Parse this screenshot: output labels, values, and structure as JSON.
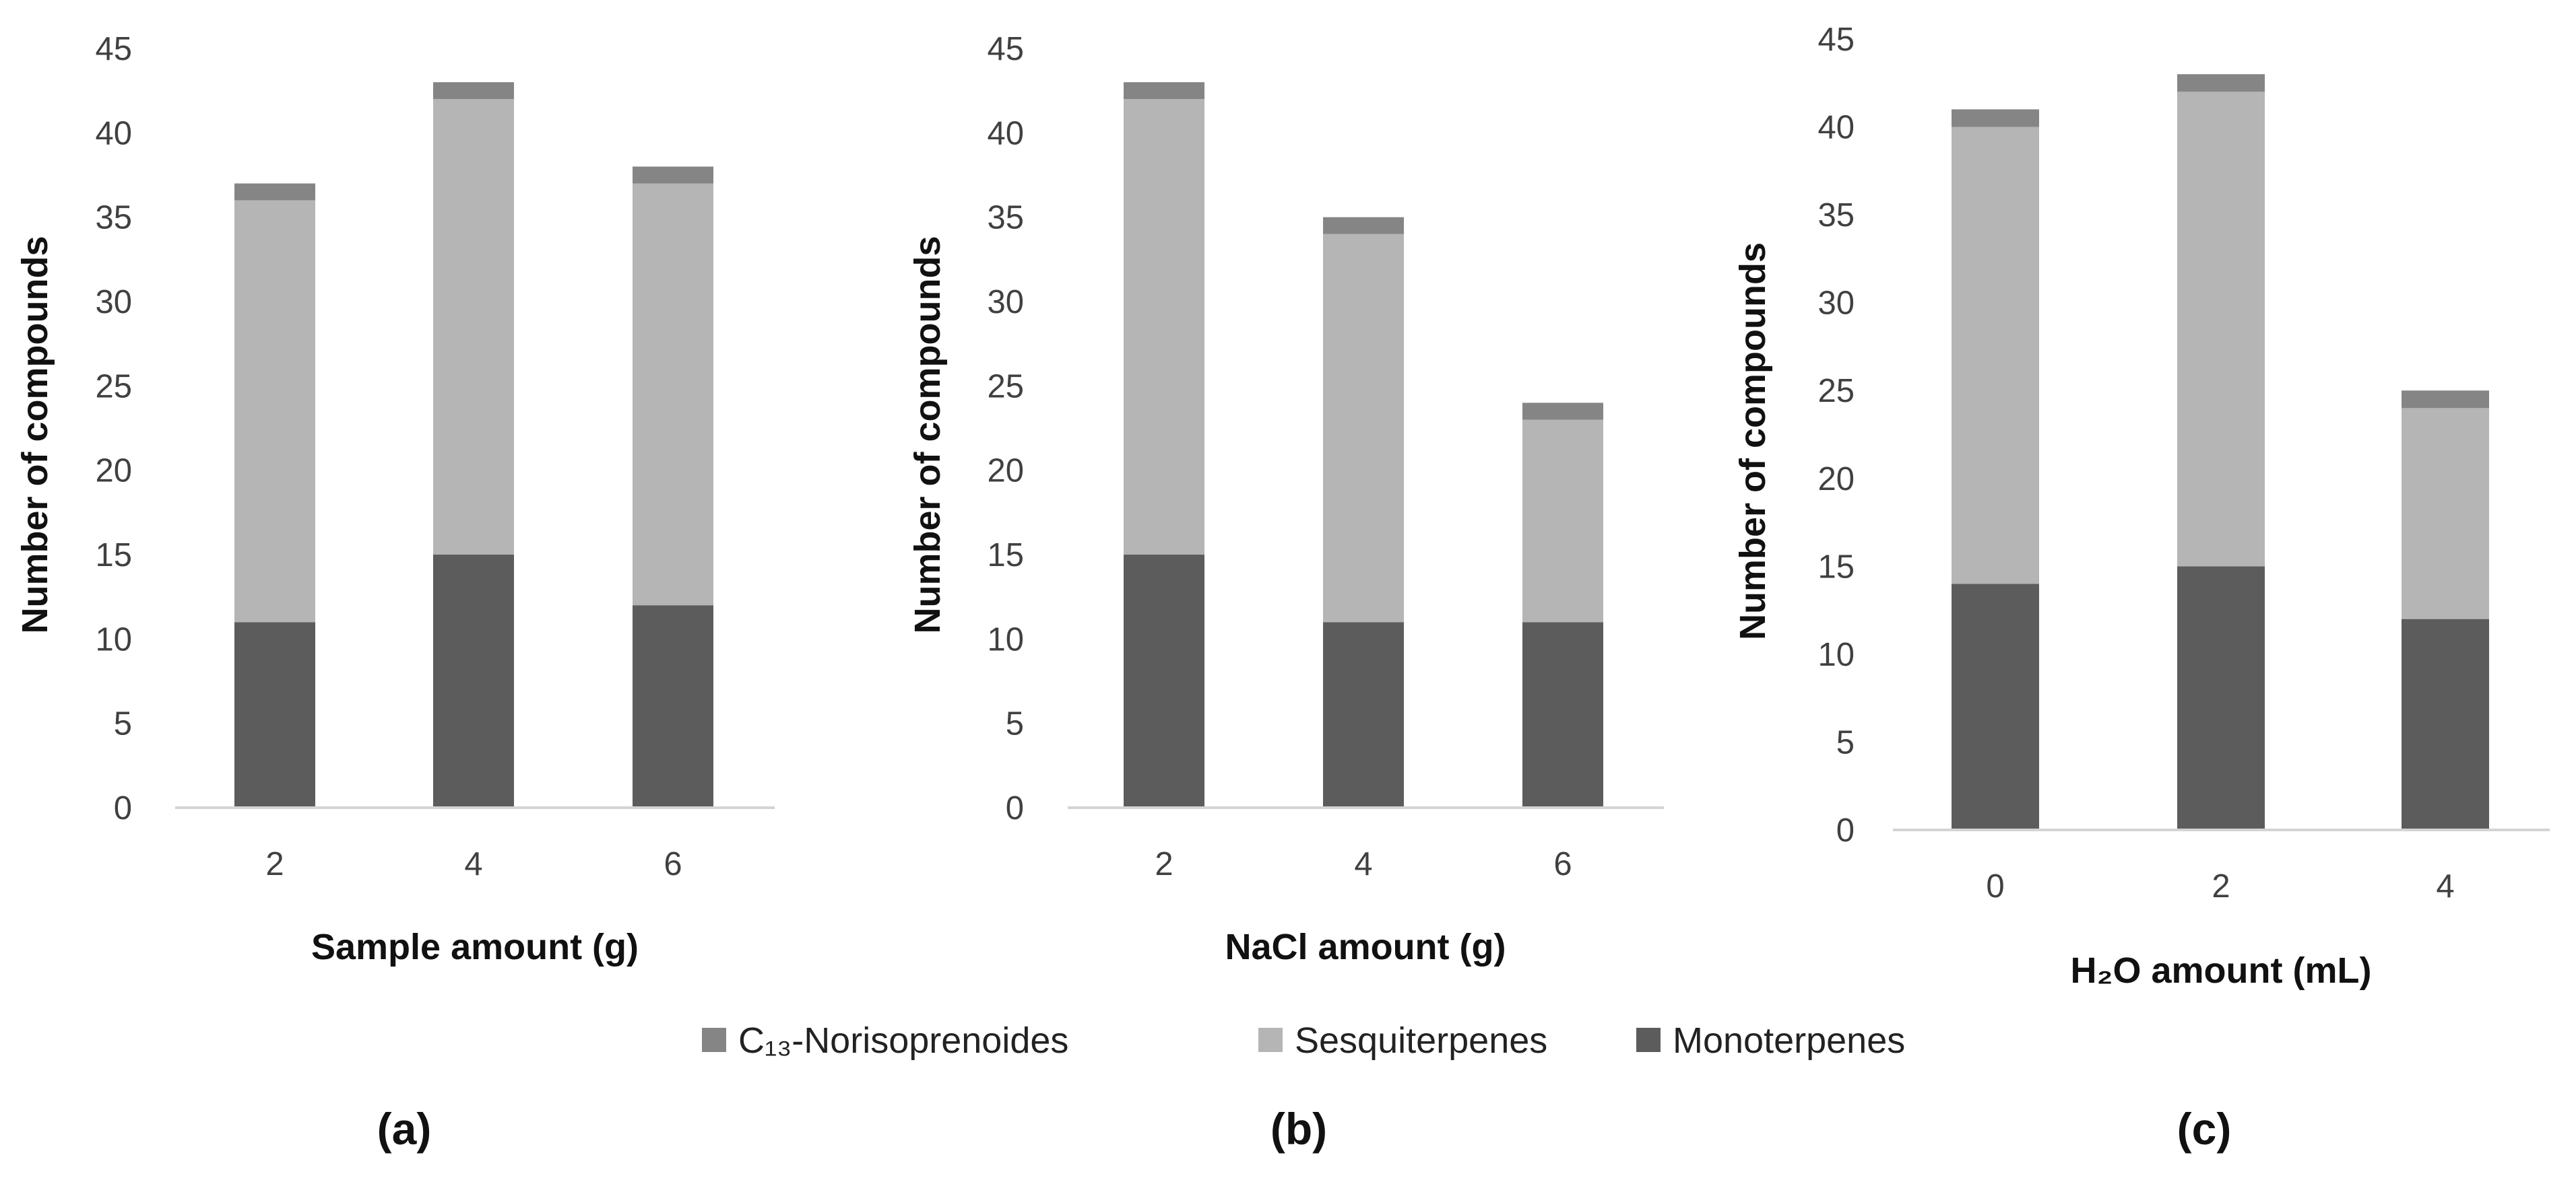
{
  "colors": {
    "monoterpenes": "#5c5c5c",
    "sesquiterpenes": "#b5b5b5",
    "norisoprenoides": "#858585",
    "axis": "#d4d4d4",
    "text": "#404040"
  },
  "legend": [
    {
      "key": "norisoprenoides",
      "name": "C₁₃-Norisoprenoides"
    },
    {
      "key": "sesquiterpenes",
      "name": "Sesquiterpenes"
    },
    {
      "key": "monoterpenes",
      "name": "Monoterpenes"
    }
  ],
  "chart_data": [
    {
      "type": "bar",
      "stacked": true,
      "panel": "(a)",
      "xlabel": "Sample amount (g)",
      "ylabel": "Number of compounds",
      "categories": [
        "2",
        "4",
        "6"
      ],
      "ylim": [
        0,
        45
      ],
      "yticks": [
        0,
        5,
        10,
        15,
        20,
        25,
        30,
        35,
        40,
        45
      ],
      "series": [
        {
          "key": "monoterpenes",
          "name": "Monoterpenes",
          "values": [
            11,
            15,
            12
          ]
        },
        {
          "key": "sesquiterpenes",
          "name": "Sesquiterpenes",
          "values": [
            25,
            27,
            25
          ]
        },
        {
          "key": "norisoprenoides",
          "name": "C₁₃-Norisoprenoides",
          "values": [
            1,
            1,
            1
          ]
        }
      ]
    },
    {
      "type": "bar",
      "stacked": true,
      "panel": "(b)",
      "xlabel": "NaCl amount (g)",
      "ylabel": "Number of compounds",
      "categories": [
        "2",
        "4",
        "6"
      ],
      "ylim": [
        0,
        45
      ],
      "yticks": [
        0,
        5,
        10,
        15,
        20,
        25,
        30,
        35,
        40,
        45
      ],
      "series": [
        {
          "key": "monoterpenes",
          "name": "Monoterpenes",
          "values": [
            15,
            11,
            11
          ]
        },
        {
          "key": "sesquiterpenes",
          "name": "Sesquiterpenes",
          "values": [
            27,
            23,
            12
          ]
        },
        {
          "key": "norisoprenoides",
          "name": "C₁₃-Norisoprenoides",
          "values": [
            1,
            1,
            1
          ]
        }
      ]
    },
    {
      "type": "bar",
      "stacked": true,
      "panel": "(c)",
      "xlabel": "H₂O amount (mL)",
      "ylabel": "Number of compounds",
      "categories": [
        "0",
        "2",
        "4"
      ],
      "ylim": [
        0,
        45
      ],
      "yticks": [
        0,
        5,
        10,
        15,
        20,
        25,
        30,
        35,
        40,
        45
      ],
      "series": [
        {
          "key": "monoterpenes",
          "name": "Monoterpenes",
          "values": [
            14,
            15,
            12
          ]
        },
        {
          "key": "sesquiterpenes",
          "name": "Sesquiterpenes",
          "values": [
            26,
            27,
            12
          ]
        },
        {
          "key": "norisoprenoides",
          "name": "C₁₃-Norisoprenoides",
          "values": [
            1,
            1,
            1
          ]
        }
      ]
    }
  ]
}
